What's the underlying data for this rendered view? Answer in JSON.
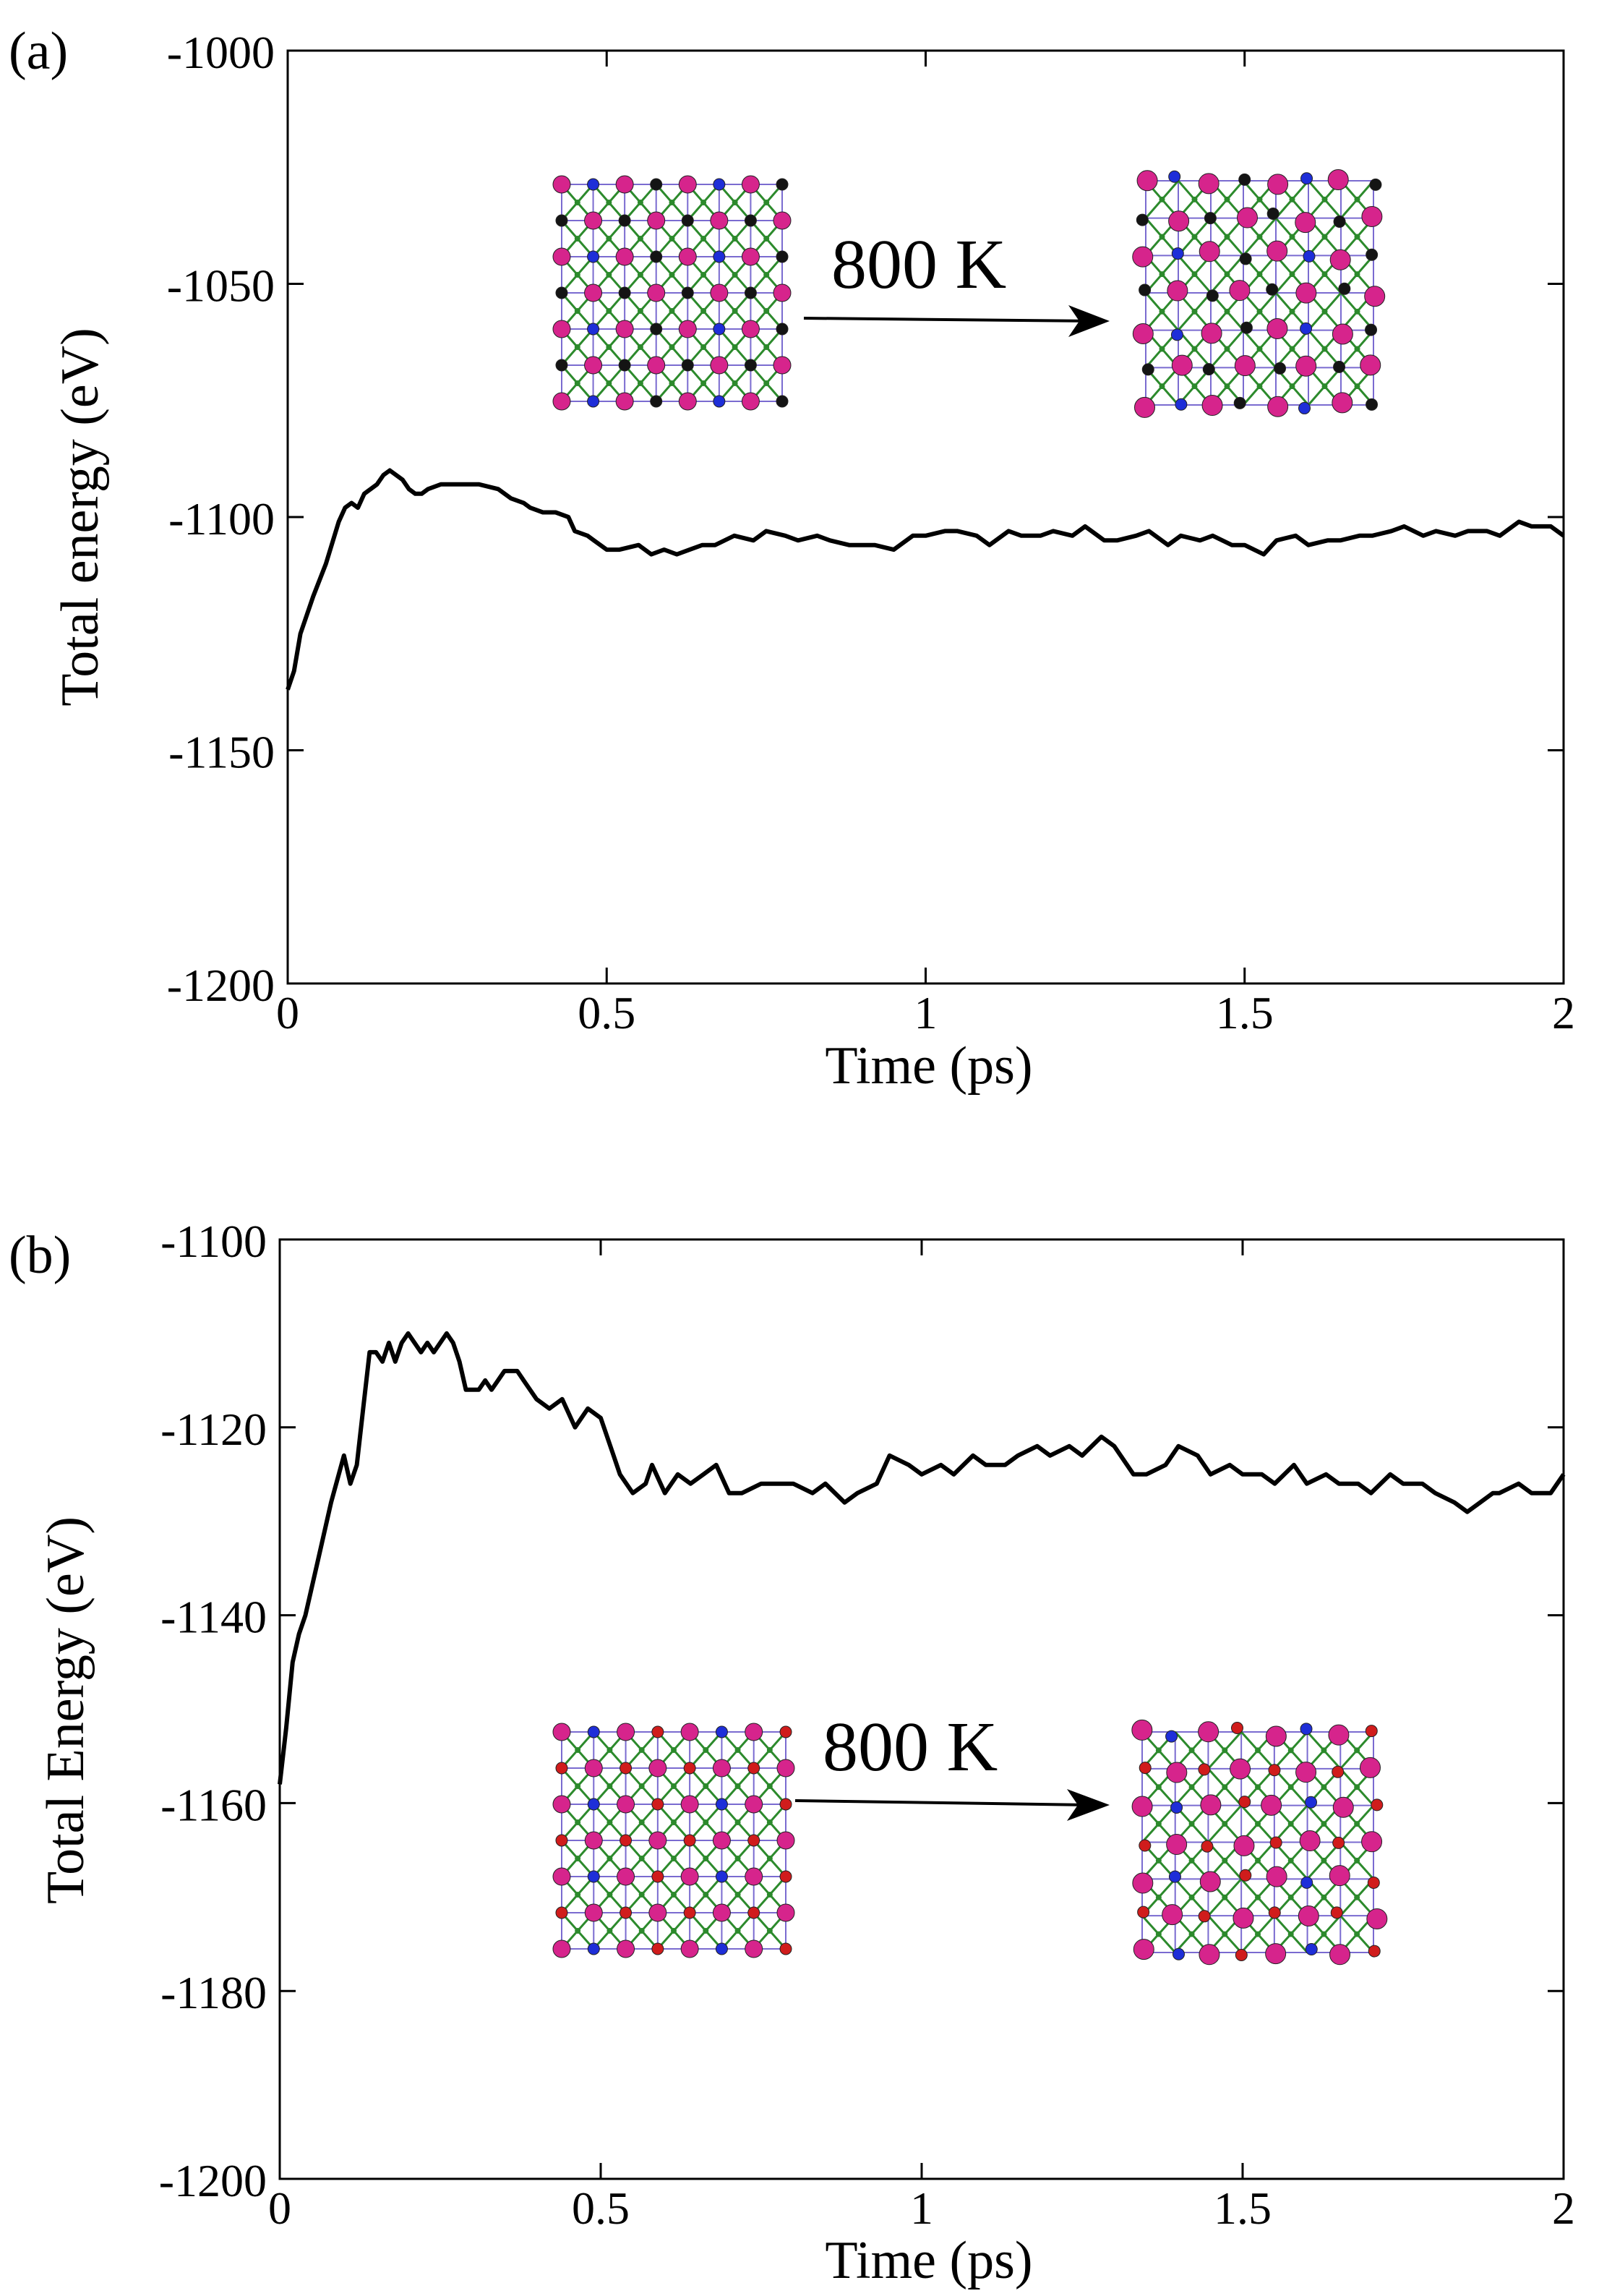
{
  "colors": {
    "line": "#000000",
    "axes": "#000000",
    "atom_magenta": "#d6248c",
    "atom_blue": "#1e2ed8",
    "atom_black": "#141414",
    "atom_red": "#d01c1c",
    "bond_green": "#2c8a2c",
    "bond_purple": "#7a6bd0"
  },
  "chart_data": [
    {
      "panel_label": "(a)",
      "type": "line",
      "xlabel": "Time (ps)",
      "ylabel": "Total energy (eV)",
      "xlim": [
        0,
        2
      ],
      "ylim": [
        -1200,
        -1000
      ],
      "xticks": [
        0,
        0.5,
        1,
        1.5,
        2
      ],
      "xtick_labels": [
        "0",
        "0.5",
        "1",
        "1.5",
        "2"
      ],
      "yticks": [
        -1200,
        -1150,
        -1100,
        -1050,
        -1000
      ],
      "ytick_labels": [
        "-1200",
        "-1150",
        "-1100",
        "-1050",
        "-1000"
      ],
      "grid": false,
      "series": [
        {
          "x": [
            0,
            0.01,
            0.02,
            0.04,
            0.06,
            0.08,
            0.09,
            0.1,
            0.11,
            0.12,
            0.13,
            0.14,
            0.15,
            0.16,
            0.17,
            0.18,
            0.19,
            0.2,
            0.21,
            0.22,
            0.24,
            0.27,
            0.3,
            0.33,
            0.35,
            0.37,
            0.38,
            0.4,
            0.42,
            0.44,
            0.45,
            0.47,
            0.48,
            0.5,
            0.52,
            0.55,
            0.57,
            0.59,
            0.61,
            0.63,
            0.65,
            0.67,
            0.7,
            0.73,
            0.75,
            0.78,
            0.8,
            0.83,
            0.85,
            0.88,
            0.9,
            0.92,
            0.95,
            0.98,
            1.0,
            1.03,
            1.05,
            1.08,
            1.1,
            1.13,
            1.15,
            1.18,
            1.2,
            1.23,
            1.25,
            1.28,
            1.3,
            1.33,
            1.35,
            1.38,
            1.4,
            1.43,
            1.45,
            1.48,
            1.5,
            1.53,
            1.55,
            1.58,
            1.6,
            1.63,
            1.65,
            1.68,
            1.7,
            1.73,
            1.75,
            1.78,
            1.8,
            1.83,
            1.85,
            1.88,
            1.9,
            1.93,
            1.95,
            1.98,
            2.0
          ],
          "y": [
            -1137,
            -1133,
            -1125,
            -1117,
            -1110,
            -1101,
            -1098,
            -1097,
            -1098,
            -1095,
            -1094,
            -1093,
            -1091,
            -1090,
            -1091,
            -1092,
            -1094,
            -1095,
            -1095,
            -1094,
            -1093,
            -1093,
            -1093,
            -1094,
            -1096,
            -1097,
            -1098,
            -1099,
            -1099,
            -1100,
            -1103,
            -1104,
            -1105,
            -1107,
            -1107,
            -1106,
            -1108,
            -1107,
            -1108,
            -1107,
            -1106,
            -1106,
            -1104,
            -1105,
            -1103,
            -1104,
            -1105,
            -1104,
            -1105,
            -1106,
            -1106,
            -1106,
            -1107,
            -1104,
            -1104,
            -1103,
            -1103,
            -1104,
            -1106,
            -1103,
            -1104,
            -1104,
            -1103,
            -1104,
            -1102,
            -1105,
            -1105,
            -1104,
            -1103,
            -1106,
            -1104,
            -1105,
            -1104,
            -1106,
            -1106,
            -1108,
            -1105,
            -1104,
            -1106,
            -1105,
            -1105,
            -1104,
            -1104,
            -1103,
            -1102,
            -1104,
            -1103,
            -1104,
            -1103,
            -1103,
            -1104,
            -1101,
            -1102,
            -1102,
            -1104
          ]
        }
      ],
      "annotation": {
        "text": "800 K",
        "left_lattice_colors": [
          "magenta",
          "blue",
          "black"
        ],
        "right_lattice_colors": [
          "magenta",
          "blue",
          "black"
        ]
      }
    },
    {
      "panel_label": "(b)",
      "type": "line",
      "xlabel": "Time (ps)",
      "ylabel": "Total Energy (eV)",
      "xlim": [
        0,
        2
      ],
      "ylim": [
        -1200,
        -1100
      ],
      "xticks": [
        0,
        0.5,
        1,
        1.5,
        2
      ],
      "xtick_labels": [
        "0",
        "0.5",
        "1",
        "1.5",
        "2"
      ],
      "yticks": [
        -1200,
        -1180,
        -1160,
        -1140,
        -1120,
        -1100
      ],
      "ytick_labels": [
        "-1200",
        "-1180",
        "-1160",
        "-1140",
        "-1120",
        "-1100"
      ],
      "grid": false,
      "series": [
        {
          "x": [
            0,
            0.01,
            0.02,
            0.03,
            0.04,
            0.06,
            0.08,
            0.1,
            0.11,
            0.12,
            0.13,
            0.14,
            0.15,
            0.16,
            0.17,
            0.18,
            0.19,
            0.2,
            0.21,
            0.22,
            0.23,
            0.24,
            0.25,
            0.26,
            0.27,
            0.28,
            0.29,
            0.3,
            0.31,
            0.32,
            0.33,
            0.34,
            0.35,
            0.37,
            0.38,
            0.4,
            0.42,
            0.44,
            0.46,
            0.48,
            0.5,
            0.52,
            0.53,
            0.55,
            0.57,
            0.58,
            0.6,
            0.62,
            0.64,
            0.66,
            0.68,
            0.7,
            0.72,
            0.75,
            0.77,
            0.8,
            0.83,
            0.85,
            0.88,
            0.9,
            0.93,
            0.95,
            0.98,
            1.0,
            1.03,
            1.05,
            1.08,
            1.1,
            1.13,
            1.15,
            1.18,
            1.2,
            1.23,
            1.25,
            1.28,
            1.3,
            1.33,
            1.35,
            1.38,
            1.4,
            1.43,
            1.45,
            1.48,
            1.5,
            1.53,
            1.55,
            1.58,
            1.6,
            1.63,
            1.65,
            1.68,
            1.7,
            1.73,
            1.75,
            1.78,
            1.8,
            1.83,
            1.85,
            1.87,
            1.89,
            1.9,
            1.93,
            1.95,
            1.98,
            2.0
          ],
          "y": [
            -1158,
            -1152,
            -1145,
            -1142,
            -1140,
            -1134,
            -1128,
            -1123,
            -1126,
            -1124,
            -1118,
            -1112,
            -1112,
            -1113,
            -1111,
            -1113,
            -1111,
            -1110,
            -1111,
            -1112,
            -1111,
            -1112,
            -1111,
            -1110,
            -1111,
            -1113,
            -1116,
            -1116,
            -1116,
            -1115,
            -1116,
            -1115,
            -1114,
            -1114,
            -1115,
            -1117,
            -1118,
            -1117,
            -1120,
            -1118,
            -1119,
            -1123,
            -1125,
            -1127,
            -1126,
            -1124,
            -1127,
            -1125,
            -1126,
            -1125,
            -1124,
            -1127,
            -1127,
            -1126,
            -1126,
            -1126,
            -1127,
            -1126,
            -1128,
            -1127,
            -1126,
            -1123,
            -1124,
            -1125,
            -1124,
            -1125,
            -1123,
            -1124,
            -1124,
            -1123,
            -1122,
            -1123,
            -1122,
            -1123,
            -1121,
            -1122,
            -1125,
            -1125,
            -1124,
            -1122,
            -1123,
            -1125,
            -1124,
            -1125,
            -1125,
            -1126,
            -1124,
            -1126,
            -1125,
            -1126,
            -1126,
            -1127,
            -1125,
            -1126,
            -1126,
            -1127,
            -1128,
            -1129,
            -1128,
            -1127,
            -1127,
            -1126,
            -1127,
            -1127,
            -1125
          ]
        }
      ],
      "annotation": {
        "text": "800 K",
        "left_lattice_colors": [
          "magenta",
          "blue",
          "red"
        ],
        "right_lattice_colors": [
          "magenta",
          "blue",
          "red"
        ]
      }
    }
  ]
}
